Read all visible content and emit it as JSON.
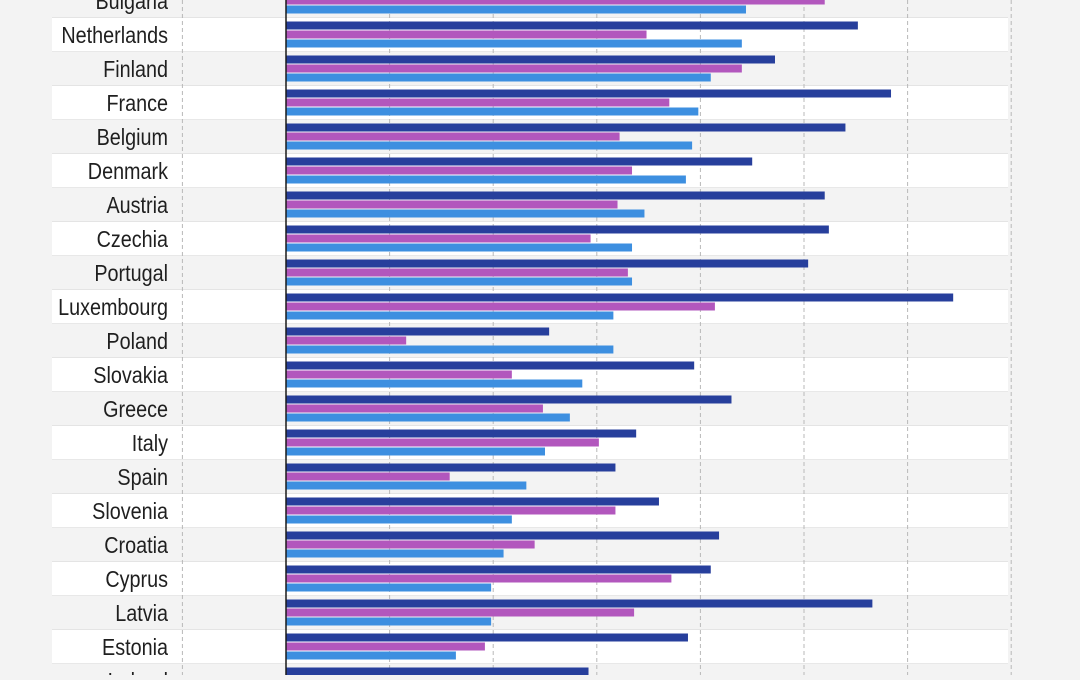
{
  "chart_data": {
    "type": "bar",
    "orientation": "horizontal",
    "categories": [
      "Bulgaria",
      "Netherlands",
      "Finland",
      "France",
      "Belgium",
      "Denmark",
      "Austria",
      "Czechia",
      "Portugal",
      "Luxembourg",
      "Poland",
      "Slovakia",
      "Greece",
      "Italy",
      "Spain",
      "Slovenia",
      "Croatia",
      "Cyprus",
      "Latvia",
      "Estonia",
      "Ireland"
    ],
    "series": [
      {
        "values": [
          null,
          27.6,
          23.6,
          29.2,
          27.0,
          22.5,
          26.0,
          26.2,
          25.2,
          32.2,
          12.7,
          19.7,
          21.5,
          16.9,
          15.9,
          18.0,
          20.9,
          20.5,
          28.3,
          19.4,
          14.6
        ]
      },
      {
        "values": [
          26.0,
          17.4,
          22.0,
          18.5,
          16.1,
          16.7,
          16.0,
          14.7,
          16.5,
          20.7,
          5.8,
          10.9,
          12.4,
          15.1,
          7.9,
          15.9,
          12.0,
          18.6,
          16.8,
          9.6,
          null
        ]
      },
      {
        "values": [
          22.2,
          22.0,
          20.5,
          19.9,
          19.6,
          19.3,
          17.3,
          16.7,
          16.7,
          15.8,
          15.8,
          14.3,
          13.7,
          12.5,
          11.6,
          10.9,
          10.5,
          9.9,
          9.9,
          8.2,
          null
        ]
      }
    ],
    "xlim": [
      0,
      35
    ],
    "x_gridline_step": 5,
    "grid": true,
    "colors": [
      "#273f9c",
      "#b257bd",
      "#3d8fe0"
    ],
    "band_colors": [
      "#ffffff",
      "#f3f3f3"
    ]
  }
}
